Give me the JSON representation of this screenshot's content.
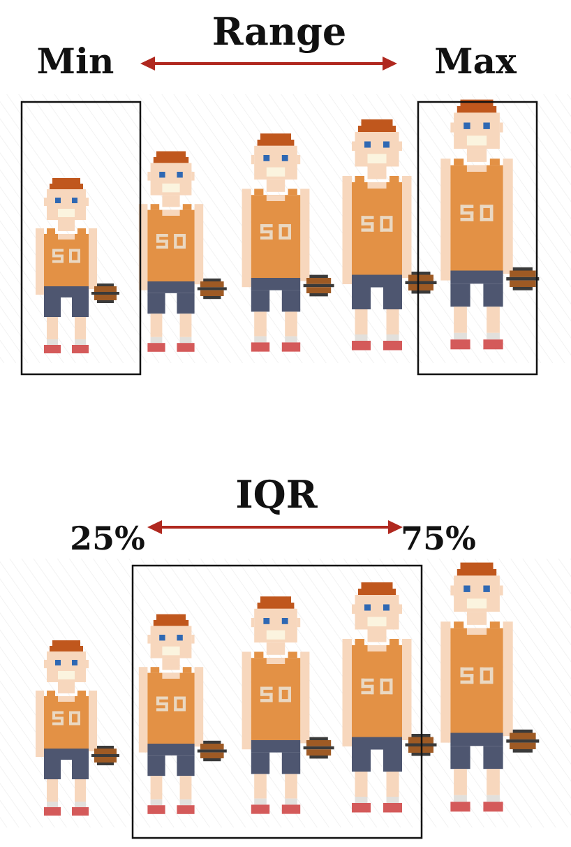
{
  "top_panel": {
    "title": "Range",
    "left_label": "Min",
    "right_label": "Max"
  },
  "bottom_panel": {
    "title": "IQR",
    "left_label": "25%",
    "right_label": "75%"
  },
  "player": {
    "jersey_number": "50",
    "heights_relative": [
      1.0,
      1.1,
      1.2,
      1.3,
      1.4
    ]
  },
  "colors": {
    "arrow": "#b0281f",
    "box": "#111111",
    "skin": "#f7d7bd",
    "hair": "#c0571d",
    "eyes": "#2f68b3",
    "mouth": "#fbf4df",
    "jersey": "#e39145",
    "jersey_number": "#ead8c2",
    "shorts": "#4e5670",
    "sock": "#e2e0dc",
    "shoe": "#d45a5a",
    "ball": "#9e5a24",
    "ball_line": "#3a3a3a"
  }
}
